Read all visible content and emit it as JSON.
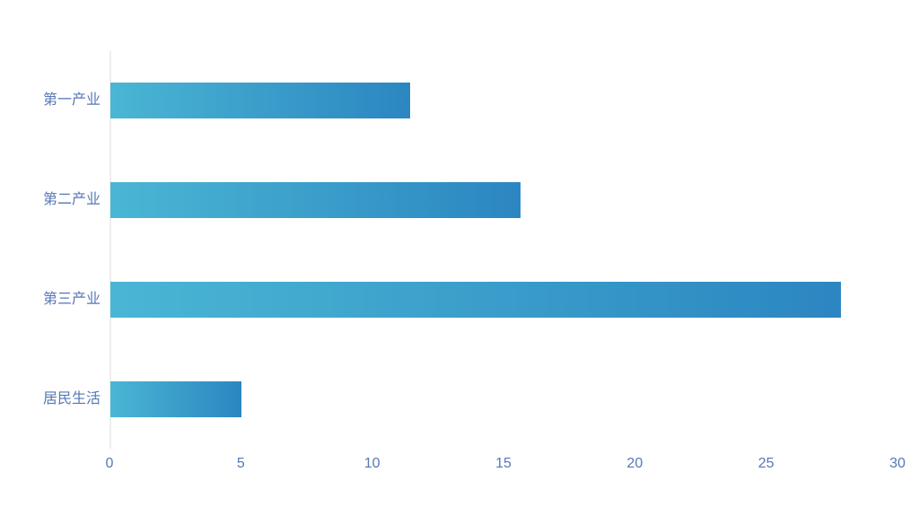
{
  "chart_data": {
    "type": "bar",
    "orientation": "horizontal",
    "title": "",
    "xlabel": "",
    "ylabel": "",
    "categories": [
      "第一产业",
      "第二产业",
      "第三产业",
      "居民生活"
    ],
    "values": [
      11.4,
      15.6,
      27.8,
      5
    ],
    "x_axis": {
      "min": 0,
      "max": 30,
      "ticks": [
        0,
        5,
        10,
        15,
        20,
        25,
        30
      ]
    },
    "grid": false,
    "legend": null,
    "colors": {
      "bar_gradient_start": "#4ab6d4",
      "bar_gradient_end": "#2c86c1",
      "axis_label": "#5577b6",
      "axis_line": "#eeeeee",
      "background": "#ffffff"
    }
  }
}
